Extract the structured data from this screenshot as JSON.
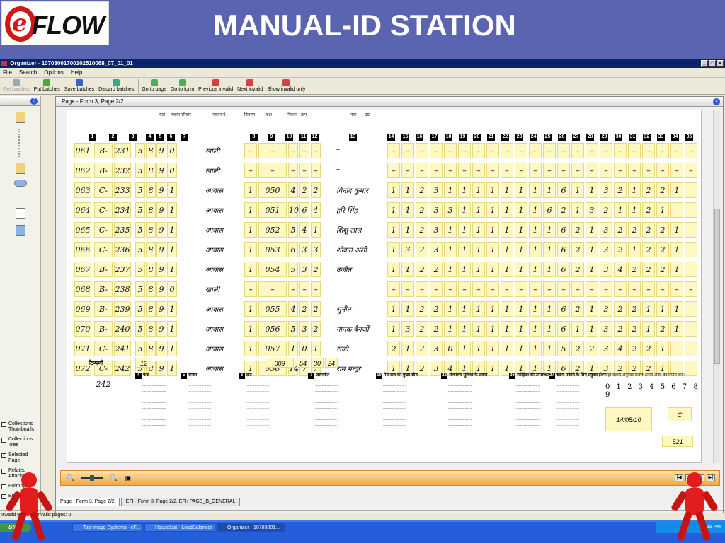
{
  "slide": {
    "title": "MANUAL-ID STATION",
    "logo_letter": "e",
    "logo_text": "FLOW"
  },
  "window": {
    "title": "Organizer - 10703001700102510068_07_01_01"
  },
  "menu": [
    "File",
    "Search",
    "Options",
    "Help"
  ],
  "toolbar": [
    {
      "label": "Get batches",
      "disabled": true,
      "icon": "get-batches-icon",
      "color": "#9aa"
    },
    {
      "label": "Put batches",
      "disabled": false,
      "icon": "put-batches-icon",
      "color": "#4a4"
    },
    {
      "label": "Save batches",
      "disabled": false,
      "icon": "save-icon",
      "color": "#36b"
    },
    {
      "label": "Discard batches",
      "disabled": false,
      "icon": "discard-icon",
      "color": "#3a8"
    },
    {
      "label": "Go to page",
      "disabled": false,
      "icon": "goto-page-icon",
      "color": "#5a5"
    },
    {
      "label": "Go to form",
      "disabled": false,
      "icon": "goto-form-icon",
      "color": "#5a5"
    },
    {
      "label": "Previous invalid",
      "disabled": false,
      "icon": "previous-invalid-icon",
      "color": "#c44"
    },
    {
      "label": "Next invalid",
      "disabled": false,
      "icon": "next-invalid-icon",
      "color": "#c44"
    },
    {
      "label": "Show invalid only",
      "disabled": false,
      "icon": "show-invalid-icon",
      "color": "#c44"
    }
  ],
  "left_panel": {
    "options": [
      {
        "label": "Collections Thumbnails",
        "checked": false
      },
      {
        "label": "Collections Tree",
        "checked": false
      },
      {
        "label": "Selected Page",
        "checked": true
      },
      {
        "label": "Related Attachment",
        "checked": false
      },
      {
        "label": "Form type",
        "checked": false
      },
      {
        "label": "EFI",
        "checked": true
      }
    ]
  },
  "document": {
    "header": "Page - Form 3, Page 2/2",
    "column_numbers": [
      "1",
      "2",
      "3",
      "4",
      "5",
      "6",
      "7",
      "8",
      "9",
      "10",
      "11",
      "12",
      "13",
      "14",
      "15",
      "16",
      "17",
      "18",
      "19",
      "20",
      "21",
      "22",
      "23",
      "24",
      "25",
      "26",
      "27",
      "28",
      "29",
      "30",
      "31",
      "32",
      "33",
      "34",
      "35"
    ],
    "header_hindi": [
      "वार्ड",
      "मकान",
      "परिवार",
      "मकान नं.",
      "विवरण",
      "कक्ष",
      "निवास",
      "क्रम",
      "नाम",
      "उम्र"
    ],
    "rows": [
      {
        "a": "061",
        "b": "B-231",
        "c": "231",
        "d": "5",
        "e": "8",
        "f": "9",
        "g": "0",
        "word": "खाली",
        "h": "–",
        "i": "–",
        "j": "–",
        "k": "–",
        "l": "–",
        "name": "–",
        "rest": [
          "–",
          "–",
          "–",
          "–",
          "–",
          "–",
          "–",
          "–",
          "–",
          "–",
          "–",
          "–",
          "–",
          "–",
          "–",
          "–",
          "–",
          "–",
          "–",
          "–",
          "–",
          "–"
        ]
      },
      {
        "a": "062",
        "b": "B-232",
        "c": "232",
        "d": "5",
        "e": "8",
        "f": "9",
        "g": "0",
        "word": "खाली",
        "h": "–",
        "i": "–",
        "j": "–",
        "k": "–",
        "l": "–",
        "name": "–",
        "rest": [
          "–",
          "–",
          "–",
          "–",
          "–",
          "–",
          "–",
          "–",
          "–",
          "–",
          "–",
          "–",
          "–",
          "–",
          "–",
          "–",
          "–",
          "–",
          "–",
          "–",
          "–",
          "–"
        ]
      },
      {
        "a": "063",
        "b": "C-233",
        "c": "233",
        "d": "5",
        "e": "8",
        "f": "9",
        "g": "1",
        "word": "आवास",
        "h": "1",
        "i": "050",
        "j": "4",
        "k": "2",
        "l": "2",
        "name": "विनोद कुमार",
        "rest": [
          "1",
          "1",
          "2",
          "3",
          "1",
          "1",
          "1",
          "1",
          "1",
          "1",
          "1",
          "1",
          "6",
          "1",
          "1",
          "3",
          "2",
          "1",
          "2",
          "2",
          "1",
          ""
        ]
      },
      {
        "a": "064",
        "b": "C-234",
        "c": "234",
        "d": "5",
        "e": "8",
        "f": "9",
        "g": "1",
        "word": "आवास",
        "h": "1",
        "i": "051",
        "j": "10",
        "k": "6",
        "l": "4",
        "name": "हरि सिंह",
        "rest": [
          "1",
          "1",
          "2",
          "3",
          "3",
          "1",
          "1",
          "1",
          "1",
          "1",
          "1",
          "6",
          "2",
          "1",
          "3",
          "2",
          "1",
          "1",
          "2",
          "1",
          "",
          ""
        ]
      },
      {
        "a": "065",
        "b": "C-235",
        "c": "235",
        "d": "5",
        "e": "8",
        "f": "9",
        "g": "1",
        "word": "आवास",
        "h": "1",
        "i": "052",
        "j": "5",
        "k": "4",
        "l": "1",
        "name": "शिशु लाल",
        "rest": [
          "1",
          "1",
          "2",
          "3",
          "1",
          "1",
          "1",
          "1",
          "1",
          "1",
          "1",
          "1",
          "6",
          "2",
          "1",
          "3",
          "2",
          "2",
          "2",
          "2",
          "1",
          ""
        ]
      },
      {
        "a": "066",
        "b": "C-236",
        "c": "236",
        "d": "5",
        "e": "8",
        "f": "9",
        "g": "1",
        "word": "आवास",
        "h": "1",
        "i": "053",
        "j": "6",
        "k": "3",
        "l": "3",
        "name": "शौकत अली",
        "rest": [
          "1",
          "3",
          "2",
          "3",
          "1",
          "1",
          "1",
          "1",
          "1",
          "1",
          "1",
          "1",
          "6",
          "2",
          "1",
          "3",
          "2",
          "1",
          "2",
          "2",
          "1",
          ""
        ]
      },
      {
        "a": "067",
        "b": "B-237",
        "c": "237",
        "d": "5",
        "e": "8",
        "f": "9",
        "g": "1",
        "word": "आवास",
        "h": "1",
        "i": "054",
        "j": "5",
        "k": "3",
        "l": "2",
        "name": "उजीत",
        "rest": [
          "1",
          "1",
          "2",
          "2",
          "1",
          "1",
          "1",
          "1",
          "1",
          "1",
          "1",
          "1",
          "6",
          "2",
          "1",
          "3",
          "4",
          "2",
          "2",
          "2",
          "1",
          ""
        ]
      },
      {
        "a": "068",
        "b": "B-238",
        "c": "238",
        "d": "5",
        "e": "8",
        "f": "9",
        "g": "0",
        "word": "खाली",
        "h": "–",
        "i": "–",
        "j": "–",
        "k": "–",
        "l": "–",
        "name": "–",
        "rest": [
          "–",
          "–",
          "–",
          "–",
          "–",
          "–",
          "–",
          "–",
          "–",
          "–",
          "–",
          "–",
          "–",
          "–",
          "–",
          "–",
          "–",
          "–",
          "–",
          "–",
          "–",
          "–"
        ]
      },
      {
        "a": "069",
        "b": "B-239",
        "c": "239",
        "d": "5",
        "e": "8",
        "f": "9",
        "g": "1",
        "word": "आवास",
        "h": "1",
        "i": "055",
        "j": "4",
        "k": "2",
        "l": "2",
        "name": "सुनीत",
        "rest": [
          "1",
          "1",
          "2",
          "2",
          "1",
          "1",
          "1",
          "1",
          "1",
          "1",
          "1",
          "1",
          "6",
          "2",
          "1",
          "3",
          "2",
          "2",
          "1",
          "1",
          "1",
          ""
        ]
      },
      {
        "a": "070",
        "b": "B-240",
        "c": "240",
        "d": "5",
        "e": "8",
        "f": "9",
        "g": "1",
        "word": "आवास",
        "h": "1",
        "i": "056",
        "j": "5",
        "k": "3",
        "l": "2",
        "name": "नानक बैनर्जी",
        "rest": [
          "1",
          "3",
          "2",
          "2",
          "1",
          "1",
          "1",
          "1",
          "1",
          "1",
          "1",
          "1",
          "6",
          "1",
          "1",
          "3",
          "2",
          "2",
          "1",
          "2",
          "1",
          ""
        ]
      },
      {
        "a": "071",
        "b": "C-241",
        "c": "241",
        "d": "5",
        "e": "8",
        "f": "9",
        "g": "1",
        "word": "आवास",
        "h": "1",
        "i": "057",
        "j": "1",
        "k": "0",
        "l": "1",
        "name": "राजो",
        "rest": [
          "2",
          "1",
          "2",
          "3",
          "0",
          "1",
          "1",
          "1",
          "1",
          "1",
          "1",
          "1",
          "5",
          "2",
          "2",
          "3",
          "4",
          "2",
          "2",
          "1",
          "",
          ""
        ]
      },
      {
        "a": "072",
        "b": "C-242",
        "c": "242",
        "d": "5",
        "e": "8",
        "f": "9",
        "g": "1",
        "word": "आवास",
        "h": "1",
        "i": "058",
        "j": "14",
        "k": "7",
        "l": "7",
        "name": "राम मन्दूर",
        "rest": [
          "1",
          "1",
          "2",
          "3",
          "4",
          "1",
          "1",
          "1",
          "1",
          "1",
          "1",
          "1",
          "6",
          "2",
          "1",
          "3",
          "2",
          "2",
          "2",
          "1",
          "",
          ""
        ]
      }
    ],
    "totals": {
      "label": "टिप्पणी",
      "v1": "12",
      "v2": "009",
      "v3": "54",
      "v4": "30",
      "v5": "24"
    },
    "sections": [
      {
        "num": "4",
        "title": "फर्श"
      },
      {
        "num": "5",
        "title": "दीवार"
      },
      {
        "num": "6",
        "title": "छत"
      },
      {
        "num": "7",
        "title": "जलस्त्रोत"
      },
      {
        "num": "19",
        "title": "पेय जल का मुख्य स्रोत"
      },
      {
        "num": "22",
        "title": "शौचालय सुविधा के प्रकार"
      },
      {
        "num": "26",
        "title": "रसोईघर की उपलब्धता"
      },
      {
        "num": "27",
        "title": "खाना पकाने के लिए प्रयुक्त ईंधन"
      }
    ],
    "footer_note": "यहां दर्शाये अनुसार केवल अरबी अंकों का प्रयोग करें।",
    "digits": "0 1 2 3 4 5 6 7 8 9",
    "date_stamp": "14/05/10",
    "stamp_c": "C",
    "stamp_sig": "521"
  },
  "tabs": [
    "Page - Form 3, Page 2/2",
    "EFI - Form 3, Page 2/2, EFI: PAGE_B_GENERAL"
  ],
  "status": "Invalid forms: 0   Invalid pages: 0",
  "taskbar": {
    "start": "Start",
    "tasks": [
      "Top Image Systems - eF...",
      "HouseList - LoadBalancer",
      "Organizer - 10703001..."
    ],
    "clock": "5:55 PM"
  }
}
